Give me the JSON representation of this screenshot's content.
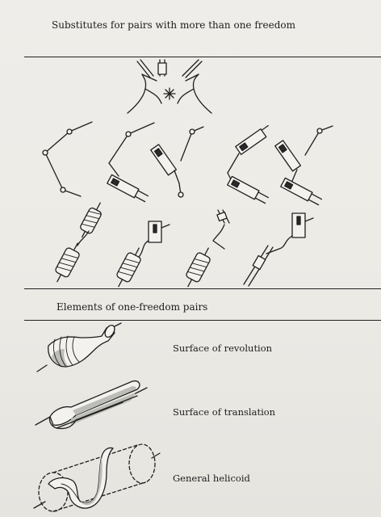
{
  "sections": {
    "top_heading": "Substitutes for pairs with more than one freedom",
    "bottom_heading": "Elements of one-freedom pairs"
  },
  "elements": [
    {
      "label": "Surface of revolution"
    },
    {
      "label": "Surface of translation"
    },
    {
      "label": "General helicoid"
    }
  ]
}
